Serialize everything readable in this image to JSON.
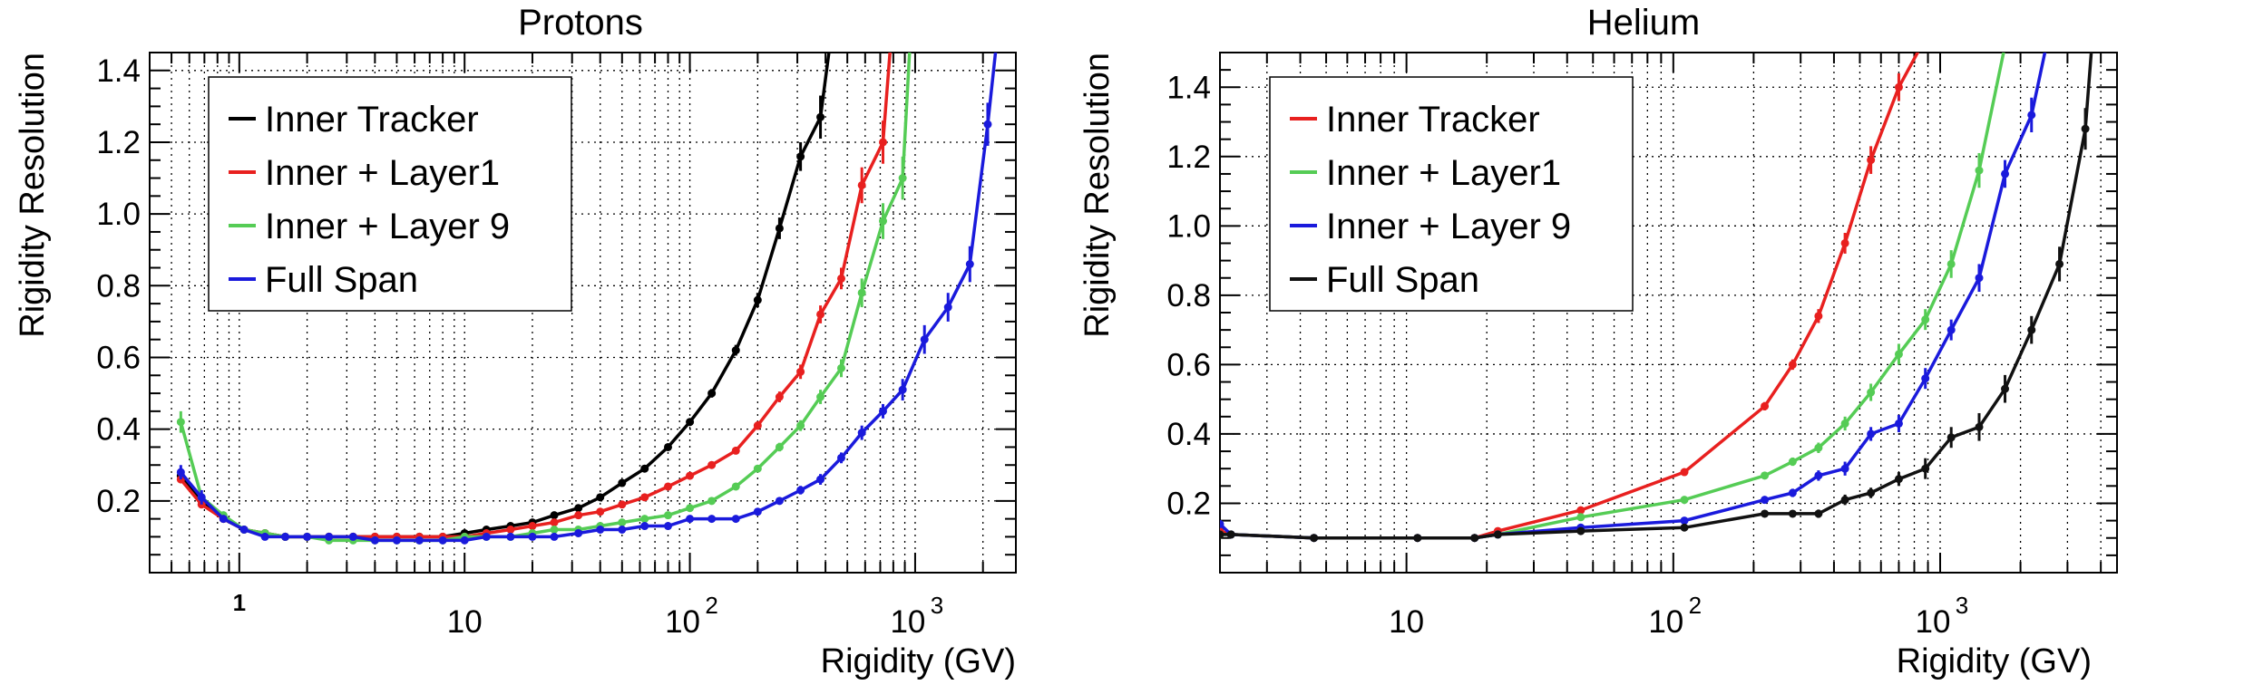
{
  "chart_data": [
    {
      "type": "line",
      "title": "Protons",
      "xlabel": "Rigidity (GV)",
      "ylabel": "Rigidity Resolution",
      "xscale": "log",
      "xlim": [
        0.4,
        2800
      ],
      "ylim": [
        0.0,
        1.45
      ],
      "xtick_labels": [
        {
          "value": 1,
          "label": "1"
        },
        {
          "value": 10,
          "label": "10"
        },
        {
          "value": 100,
          "label": "10",
          "exponent": "2"
        },
        {
          "value": 1000,
          "label": "10",
          "exponent": "3"
        }
      ],
      "yticks": [
        0.2,
        0.4,
        0.6,
        0.8,
        1.0,
        1.2,
        1.4
      ],
      "ytick_labels": [
        "0.2",
        "0.4",
        "0.6",
        "0.8",
        "1.0",
        "1.2",
        "1.4"
      ],
      "grid": true,
      "legend_position": "top-left",
      "series": [
        {
          "name": "Inner Tracker",
          "color": "#000000",
          "x": [
            0.55,
            0.68,
            0.85,
            1.05,
            1.3,
            1.6,
            2.0,
            2.5,
            3.2,
            4.0,
            5.0,
            6.3,
            8.0,
            10,
            12.5,
            16,
            20,
            25,
            32,
            40,
            50,
            63,
            80,
            100,
            125,
            160,
            200,
            250,
            310,
            380,
            420
          ],
          "y": [
            0.27,
            0.2,
            0.15,
            0.12,
            0.11,
            0.1,
            0.1,
            0.1,
            0.1,
            0.1,
            0.1,
            0.1,
            0.1,
            0.11,
            0.12,
            0.13,
            0.14,
            0.16,
            0.18,
            0.21,
            0.25,
            0.29,
            0.35,
            0.42,
            0.5,
            0.62,
            0.76,
            0.96,
            1.16,
            1.27,
            1.48
          ],
          "yerr": [
            0.01,
            0.01,
            0.005,
            0.005,
            0.003,
            0.003,
            0.003,
            0.003,
            0.003,
            0.003,
            0.003,
            0.003,
            0.003,
            0.003,
            0.003,
            0.004,
            0.004,
            0.005,
            0.005,
            0.006,
            0.006,
            0.008,
            0.01,
            0.01,
            0.012,
            0.015,
            0.02,
            0.03,
            0.04,
            0.06,
            0.0
          ]
        },
        {
          "name": "Inner + Layer1",
          "color": "#e8201f",
          "x": [
            0.55,
            0.68,
            0.85,
            1.05,
            1.3,
            1.6,
            2.0,
            2.5,
            3.2,
            4.0,
            5.0,
            6.3,
            8.0,
            10,
            12.5,
            16,
            20,
            25,
            32,
            40,
            50,
            63,
            80,
            100,
            125,
            160,
            200,
            250,
            310,
            380,
            470,
            580,
            720,
            780
          ],
          "y": [
            0.26,
            0.19,
            0.15,
            0.12,
            0.11,
            0.1,
            0.1,
            0.1,
            0.1,
            0.1,
            0.1,
            0.1,
            0.1,
            0.1,
            0.11,
            0.12,
            0.13,
            0.14,
            0.16,
            0.17,
            0.19,
            0.21,
            0.24,
            0.27,
            0.3,
            0.34,
            0.41,
            0.49,
            0.56,
            0.72,
            0.82,
            1.08,
            1.2,
            1.48
          ],
          "yerr": [
            0.01,
            0.01,
            0.005,
            0.005,
            0.003,
            0.003,
            0.003,
            0.003,
            0.003,
            0.003,
            0.003,
            0.003,
            0.003,
            0.003,
            0.003,
            0.003,
            0.004,
            0.004,
            0.004,
            0.005,
            0.005,
            0.005,
            0.006,
            0.007,
            0.008,
            0.01,
            0.012,
            0.015,
            0.02,
            0.025,
            0.03,
            0.05,
            0.06,
            0.0
          ]
        },
        {
          "name": "Inner + Layer 9",
          "color": "#55cc55",
          "x": [
            0.55,
            0.68,
            0.85,
            1.05,
            1.3,
            1.6,
            2.0,
            2.5,
            3.2,
            4.0,
            5.0,
            6.3,
            8.0,
            10,
            12.5,
            16,
            20,
            25,
            32,
            40,
            50,
            63,
            80,
            100,
            125,
            160,
            200,
            250,
            310,
            380,
            470,
            580,
            720,
            880,
            950
          ],
          "y": [
            0.42,
            0.21,
            0.16,
            0.12,
            0.11,
            0.1,
            0.1,
            0.09,
            0.09,
            0.09,
            0.09,
            0.09,
            0.09,
            0.1,
            0.1,
            0.1,
            0.11,
            0.12,
            0.12,
            0.13,
            0.14,
            0.15,
            0.16,
            0.18,
            0.2,
            0.24,
            0.29,
            0.35,
            0.41,
            0.49,
            0.57,
            0.78,
            0.98,
            1.1,
            1.48
          ],
          "yerr": [
            0.03,
            0.01,
            0.005,
            0.005,
            0.003,
            0.003,
            0.003,
            0.003,
            0.003,
            0.003,
            0.003,
            0.003,
            0.003,
            0.003,
            0.003,
            0.003,
            0.003,
            0.004,
            0.004,
            0.004,
            0.004,
            0.005,
            0.005,
            0.006,
            0.007,
            0.008,
            0.01,
            0.012,
            0.015,
            0.02,
            0.025,
            0.04,
            0.05,
            0.06,
            0.0
          ]
        },
        {
          "name": "Full Span",
          "color": "#1a1adc",
          "x": [
            0.55,
            0.68,
            0.85,
            1.05,
            1.3,
            1.6,
            2.0,
            2.5,
            3.2,
            4.0,
            5.0,
            6.3,
            8.0,
            10,
            12.5,
            16,
            20,
            25,
            32,
            40,
            50,
            63,
            80,
            100,
            125,
            160,
            200,
            250,
            310,
            380,
            470,
            580,
            720,
            880,
            1100,
            1400,
            1750,
            2100,
            2300
          ],
          "y": [
            0.28,
            0.21,
            0.15,
            0.12,
            0.1,
            0.1,
            0.1,
            0.1,
            0.1,
            0.09,
            0.09,
            0.09,
            0.09,
            0.09,
            0.1,
            0.1,
            0.1,
            0.1,
            0.11,
            0.12,
            0.12,
            0.13,
            0.13,
            0.15,
            0.15,
            0.15,
            0.17,
            0.2,
            0.23,
            0.26,
            0.32,
            0.39,
            0.45,
            0.51,
            0.65,
            0.74,
            0.86,
            1.25,
            1.48
          ],
          "yerr": [
            0.02,
            0.02,
            0.005,
            0.005,
            0.003,
            0.003,
            0.003,
            0.003,
            0.003,
            0.003,
            0.003,
            0.003,
            0.003,
            0.003,
            0.003,
            0.003,
            0.003,
            0.003,
            0.003,
            0.004,
            0.004,
            0.004,
            0.005,
            0.005,
            0.006,
            0.007,
            0.008,
            0.01,
            0.012,
            0.015,
            0.015,
            0.02,
            0.02,
            0.03,
            0.04,
            0.04,
            0.05,
            0.06,
            0.0
          ]
        }
      ]
    },
    {
      "type": "line",
      "title": "Helium",
      "xlabel": "Rigidity (GV)",
      "ylabel": "Rigidity Resolution",
      "xscale": "log",
      "xlim": [
        2,
        4600
      ],
      "ylim": [
        0.0,
        1.5
      ],
      "xtick_labels": [
        {
          "value": 10,
          "label": "10"
        },
        {
          "value": 100,
          "label": "10",
          "exponent": "2"
        },
        {
          "value": 1000,
          "label": "10",
          "exponent": "3"
        }
      ],
      "yticks": [
        0.2,
        0.4,
        0.6,
        0.8,
        1.0,
        1.2,
        1.4
      ],
      "ytick_labels": [
        "0.2",
        "0.4",
        "0.6",
        "0.8",
        "1.0",
        "1.2",
        "1.4"
      ],
      "grid": true,
      "legend_position": "top-left",
      "series": [
        {
          "name": "Inner Tracker",
          "color": "#e8201f",
          "x": [
            2.0,
            2.2,
            4.5,
            11,
            18,
            22,
            45,
            110,
            220,
            280,
            350,
            440,
            550,
            700,
            850
          ],
          "y": [
            0.12,
            0.11,
            0.1,
            0.1,
            0.1,
            0.12,
            0.18,
            0.29,
            0.48,
            0.6,
            0.74,
            0.95,
            1.19,
            1.4,
            1.52
          ],
          "yerr": [
            0.003,
            0.003,
            0.003,
            0.003,
            0.003,
            0.004,
            0.006,
            0.008,
            0.012,
            0.015,
            0.02,
            0.03,
            0.04,
            0.04,
            0.0
          ]
        },
        {
          "name": "Inner + Layer1",
          "color": "#55cc55",
          "x": [
            2.0,
            2.2,
            4.5,
            11,
            18,
            22,
            45,
            110,
            220,
            280,
            350,
            440,
            550,
            700,
            880,
            1100,
            1400,
            1750
          ],
          "y": [
            0.11,
            0.11,
            0.1,
            0.1,
            0.1,
            0.11,
            0.16,
            0.21,
            0.28,
            0.32,
            0.36,
            0.43,
            0.52,
            0.63,
            0.73,
            0.89,
            1.16,
            1.52
          ],
          "yerr": [
            0.003,
            0.003,
            0.003,
            0.003,
            0.003,
            0.004,
            0.005,
            0.007,
            0.01,
            0.012,
            0.015,
            0.02,
            0.025,
            0.03,
            0.03,
            0.04,
            0.05,
            0.0
          ]
        },
        {
          "name": "Inner + Layer 9",
          "color": "#1a1adc",
          "x": [
            2.0,
            2.2,
            4.5,
            11,
            18,
            22,
            45,
            110,
            220,
            280,
            350,
            440,
            550,
            700,
            880,
            1100,
            1400,
            1750,
            2200,
            2500
          ],
          "y": [
            0.14,
            0.11,
            0.1,
            0.1,
            0.1,
            0.11,
            0.13,
            0.15,
            0.21,
            0.23,
            0.28,
            0.3,
            0.4,
            0.43,
            0.56,
            0.7,
            0.85,
            1.15,
            1.32,
            1.52
          ],
          "yerr": [
            0.003,
            0.003,
            0.003,
            0.003,
            0.003,
            0.004,
            0.005,
            0.006,
            0.01,
            0.012,
            0.015,
            0.02,
            0.02,
            0.025,
            0.03,
            0.03,
            0.04,
            0.04,
            0.05,
            0.0
          ]
        },
        {
          "name": "Full Span",
          "color": "#111111",
          "x": [
            2.0,
            2.2,
            4.5,
            11,
            18,
            22,
            45,
            110,
            220,
            280,
            350,
            440,
            550,
            700,
            880,
            1100,
            1400,
            1750,
            2200,
            2800,
            3500,
            3700
          ],
          "y": [
            0.11,
            0.11,
            0.1,
            0.1,
            0.1,
            0.11,
            0.12,
            0.13,
            0.17,
            0.17,
            0.17,
            0.21,
            0.23,
            0.27,
            0.3,
            0.39,
            0.42,
            0.53,
            0.7,
            0.89,
            1.28,
            1.52
          ],
          "yerr": [
            0.003,
            0.003,
            0.003,
            0.003,
            0.003,
            0.003,
            0.004,
            0.005,
            0.008,
            0.01,
            0.012,
            0.015,
            0.015,
            0.02,
            0.03,
            0.03,
            0.04,
            0.04,
            0.04,
            0.05,
            0.06,
            0.0
          ]
        }
      ]
    }
  ]
}
